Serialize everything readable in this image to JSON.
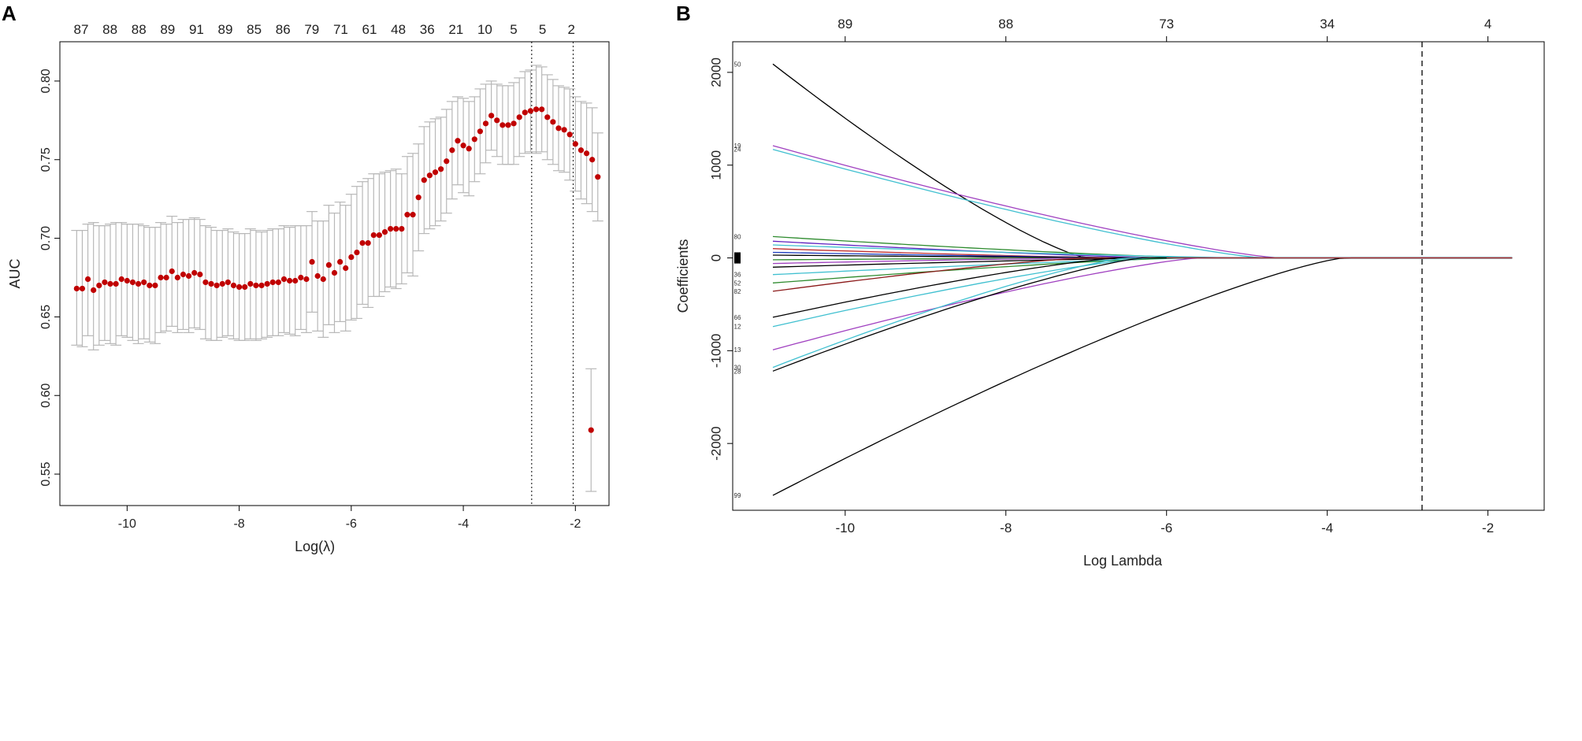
{
  "figure": {
    "panel_a_label": "A",
    "panel_b_label": "B"
  },
  "chart_data": [
    {
      "type": "scatter",
      "panel": "A",
      "title": "",
      "xlabel": "Log(λ)",
      "ylabel": "AUC",
      "xlim": [
        -11.2,
        -1.4
      ],
      "ylim": [
        0.53,
        0.825
      ],
      "x_ticks": [
        -10,
        -8,
        -6,
        -4,
        -2
      ],
      "x_tick_labels": [
        "-10",
        "-8",
        "-6",
        "-4",
        "-2"
      ],
      "y_ticks": [
        0.55,
        0.6,
        0.65,
        0.7,
        0.75,
        0.8
      ],
      "y_tick_labels": [
        "0.55",
        "0.60",
        "0.65",
        "0.70",
        "0.75",
        "0.80"
      ],
      "top_axis_labels": [
        "87",
        "88",
        "88",
        "89",
        "91",
        "89",
        "85",
        "86",
        "79",
        "71",
        "61",
        "48",
        "36",
        "21",
        "10",
        "5",
        "5",
        "2"
      ],
      "top_axis_positions": [
        -10.9,
        -10.2,
        -9.5,
        -8.8,
        -8.1,
        -7.4,
        -6.7,
        -6.0,
        -5.3,
        -4.6,
        -3.9,
        -3.2,
        -2.5,
        -1.8,
        -1.1,
        -0.4,
        0.3,
        1.0
      ],
      "x_start": -10.9,
      "x_step": 0.1,
      "auc": [
        0.668,
        0.668,
        0.674,
        0.667,
        0.67,
        0.672,
        0.671,
        0.671,
        0.674,
        0.673,
        0.672,
        0.671,
        0.672,
        0.67,
        0.67,
        0.675,
        0.675,
        0.679,
        0.675,
        0.677,
        0.676,
        0.678,
        0.677,
        0.672,
        0.671,
        0.67,
        0.671,
        0.672,
        0.67,
        0.669,
        0.669,
        0.671,
        0.67,
        0.67,
        0.671,
        0.672,
        0.672,
        0.674,
        0.673,
        0.673,
        0.675,
        0.674,
        0.685,
        0.676,
        0.674,
        0.683,
        0.678,
        0.685,
        0.681,
        0.688,
        0.691,
        0.697,
        0.697,
        0.702,
        0.702,
        0.704,
        0.706,
        0.706,
        0.706,
        0.715,
        0.715,
        0.726,
        0.737,
        0.74,
        0.742,
        0.744,
        0.749,
        0.756,
        0.762,
        0.759,
        0.757,
        0.763,
        0.768,
        0.773,
        0.778,
        0.775,
        0.772,
        0.772,
        0.773,
        0.777,
        0.78,
        0.781,
        0.782,
        0.782,
        0.777,
        0.774,
        0.77,
        0.769,
        0.766,
        0.76,
        0.756,
        0.754,
        0.75,
        0.739
      ],
      "auc_upper": [
        0.705,
        0.705,
        0.709,
        0.71,
        0.708,
        0.708,
        0.709,
        0.71,
        0.71,
        0.709,
        0.709,
        0.709,
        0.708,
        0.707,
        0.707,
        0.71,
        0.709,
        0.714,
        0.71,
        0.712,
        0.712,
        0.713,
        0.712,
        0.708,
        0.707,
        0.705,
        0.705,
        0.706,
        0.704,
        0.703,
        0.703,
        0.706,
        0.705,
        0.704,
        0.705,
        0.706,
        0.706,
        0.708,
        0.707,
        0.708,
        0.708,
        0.708,
        0.717,
        0.711,
        0.711,
        0.721,
        0.716,
        0.723,
        0.721,
        0.728,
        0.733,
        0.736,
        0.738,
        0.741,
        0.741,
        0.742,
        0.743,
        0.744,
        0.741,
        0.752,
        0.754,
        0.76,
        0.771,
        0.774,
        0.776,
        0.777,
        0.782,
        0.787,
        0.79,
        0.789,
        0.787,
        0.79,
        0.795,
        0.798,
        0.8,
        0.798,
        0.797,
        0.797,
        0.799,
        0.802,
        0.806,
        0.807,
        0.81,
        0.809,
        0.804,
        0.801,
        0.797,
        0.796,
        0.795,
        0.79,
        0.787,
        0.786,
        0.783,
        0.767
      ],
      "auc_lower": [
        0.632,
        0.631,
        0.638,
        0.629,
        0.632,
        0.635,
        0.633,
        0.632,
        0.638,
        0.637,
        0.635,
        0.633,
        0.636,
        0.634,
        0.633,
        0.64,
        0.641,
        0.644,
        0.64,
        0.642,
        0.64,
        0.643,
        0.642,
        0.636,
        0.635,
        0.635,
        0.637,
        0.638,
        0.636,
        0.635,
        0.635,
        0.636,
        0.635,
        0.636,
        0.637,
        0.638,
        0.638,
        0.64,
        0.639,
        0.638,
        0.642,
        0.64,
        0.653,
        0.641,
        0.637,
        0.645,
        0.64,
        0.647,
        0.641,
        0.648,
        0.649,
        0.658,
        0.656,
        0.663,
        0.663,
        0.666,
        0.669,
        0.668,
        0.671,
        0.678,
        0.676,
        0.692,
        0.703,
        0.706,
        0.708,
        0.711,
        0.716,
        0.725,
        0.734,
        0.729,
        0.727,
        0.736,
        0.741,
        0.748,
        0.756,
        0.752,
        0.747,
        0.747,
        0.747,
        0.752,
        0.754,
        0.755,
        0.754,
        0.755,
        0.75,
        0.747,
        0.743,
        0.742,
        0.737,
        0.73,
        0.725,
        0.722,
        0.717,
        0.711
      ],
      "outlier_point": {
        "x": -1.72,
        "auc": 0.578,
        "upper": 0.617,
        "lower": 0.539
      },
      "vlines": [
        -2.78,
        -2.04
      ],
      "point_color": "#c00000",
      "errorbar_color": "#b8b8b8"
    },
    {
      "type": "line",
      "panel": "B",
      "title": "",
      "xlabel": "Log Lambda",
      "ylabel": "Coefficients",
      "xlim": [
        -11.4,
        -1.3
      ],
      "ylim": [
        -2720,
        2330
      ],
      "x_ticks": [
        -10,
        -8,
        -6,
        -4,
        -2
      ],
      "x_tick_labels": [
        "-10",
        "-8",
        "-6",
        "-4",
        "-2"
      ],
      "y_ticks": [
        -2000,
        -1000,
        0,
        1000,
        2000
      ],
      "y_tick_labels": [
        "-2000",
        "-1000",
        "0",
        "1000",
        "2000"
      ],
      "top_axis_labels": [
        "89",
        "88",
        "73",
        "34",
        "4"
      ],
      "top_axis_positions": [
        -10,
        -8,
        -6,
        -4,
        -2
      ],
      "vline": -2.82,
      "x_start": -10.9,
      "x_end": -1.7,
      "series": [
        {
          "name": "50",
          "start": 2090,
          "vanish": -7.0,
          "color": "#000000",
          "label": "50"
        },
        {
          "name": "19",
          "start": 1210,
          "vanish": -4.6,
          "color": "#a040c0",
          "label": "19"
        },
        {
          "name": "24",
          "start": 1170,
          "vanish": -4.8,
          "color": "#40c0d0",
          "label": "24"
        },
        {
          "name": "80",
          "start": 230,
          "vanish": -5.5,
          "color": "#2e8b2e",
          "label": "80"
        },
        {
          "name": "60",
          "start": 180,
          "vanish": -6.0,
          "color": "#6020c0",
          "label": ""
        },
        {
          "name": "s6",
          "start": 140,
          "vanish": -5.0,
          "color": "#40c0d0",
          "label": ""
        },
        {
          "name": "s7",
          "start": 100,
          "vanish": -6.5,
          "color": "#c03030",
          "label": ""
        },
        {
          "name": "s8",
          "start": 60,
          "vanish": -6.2,
          "color": "#2040c0",
          "label": ""
        },
        {
          "name": "s9",
          "start": 30,
          "vanish": -6.0,
          "color": "#000000",
          "label": ""
        },
        {
          "name": "s10",
          "start": -20,
          "vanish": -6.4,
          "color": "#2e8b2e",
          "label": ""
        },
        {
          "name": "s11",
          "start": -60,
          "vanish": -6.8,
          "color": "#a040c0",
          "label": ""
        },
        {
          "name": "s12",
          "start": -100,
          "vanish": -6.0,
          "color": "#000000",
          "label": ""
        },
        {
          "name": "36",
          "start": -180,
          "vanish": -5.6,
          "color": "#40c0d0",
          "label": "36"
        },
        {
          "name": "52",
          "start": -270,
          "vanish": -5.8,
          "color": "#2e8b2e",
          "label": "52"
        },
        {
          "name": "82",
          "start": -360,
          "vanish": -7.0,
          "color": "#8b1a1a",
          "label": "82"
        },
        {
          "name": "66",
          "start": -640,
          "vanish": -6.6,
          "color": "#000000",
          "label": "66"
        },
        {
          "name": "12",
          "start": -740,
          "vanish": -6.2,
          "color": "#40c0d0",
          "label": "12"
        },
        {
          "name": "13",
          "start": -990,
          "vanish": -5.6,
          "color": "#a040c0",
          "label": "13"
        },
        {
          "name": "30",
          "start": -1180,
          "vanish": -6.5,
          "color": "#40c0d0",
          "label": "30"
        },
        {
          "name": "28",
          "start": -1220,
          "vanish": -6.3,
          "color": "#000000",
          "label": "28"
        },
        {
          "name": "99",
          "start": -2560,
          "vanish": -3.8,
          "color": "#000000",
          "label": "99"
        }
      ]
    }
  ]
}
